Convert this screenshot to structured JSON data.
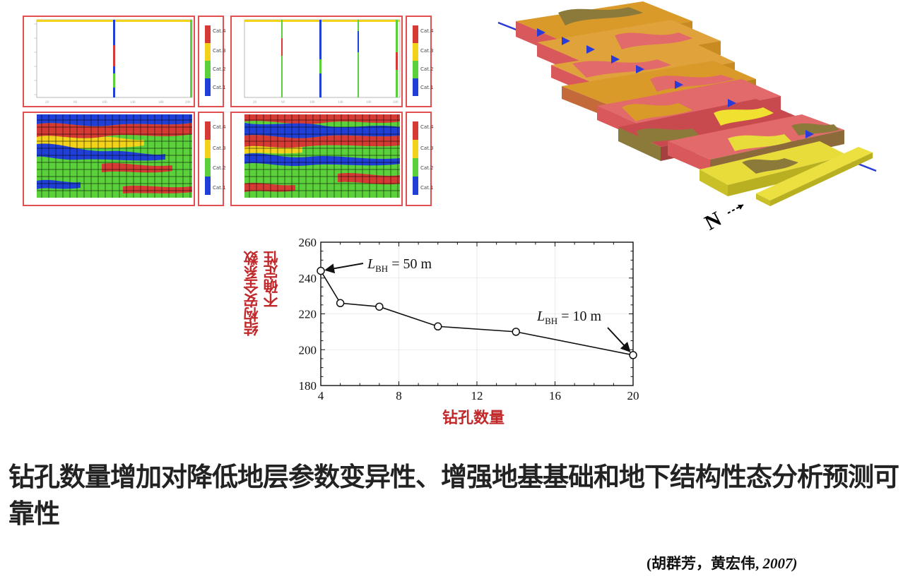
{
  "colors": {
    "cat1": "#1f3fd6",
    "cat2": "#5ad03a",
    "cat3": "#f2d21a",
    "cat4": "#d63a34",
    "panel_border": "#e05050",
    "label_red": "#c0282a"
  },
  "legend_categories": [
    "Cat.4",
    "Cat.3",
    "Cat.2",
    "Cat.1"
  ],
  "chart_data": {
    "type": "line",
    "x": [
      4,
      5,
      7,
      10,
      14,
      20
    ],
    "y": [
      244,
      226,
      224,
      213,
      210,
      197
    ],
    "xlim": [
      4,
      20
    ],
    "ylim": [
      180,
      260
    ],
    "xticks": [
      "4",
      "8",
      "12",
      "16",
      "20"
    ],
    "yticks": [
      "180",
      "200",
      "220",
      "240",
      "260"
    ],
    "xlabel": "钻孔数量",
    "ylabel_lines": [
      "结构安全系数",
      "不确定性"
    ],
    "annotations": [
      {
        "prefix": "L",
        "sub": "BH",
        "suffix": " = 50 m",
        "x": 4,
        "y": 244
      },
      {
        "prefix": "L",
        "sub": "BH",
        "suffix": " = 10 m",
        "x": 20,
        "y": 197
      }
    ]
  },
  "headline": "钻孔数量增加对降低地层参数变异性、增强地基基础和地下结构性态分析预测可靠性",
  "citation": {
    "authors": "(胡群芳，黄宏伟, ",
    "year": "2007)"
  },
  "north_label": "N"
}
